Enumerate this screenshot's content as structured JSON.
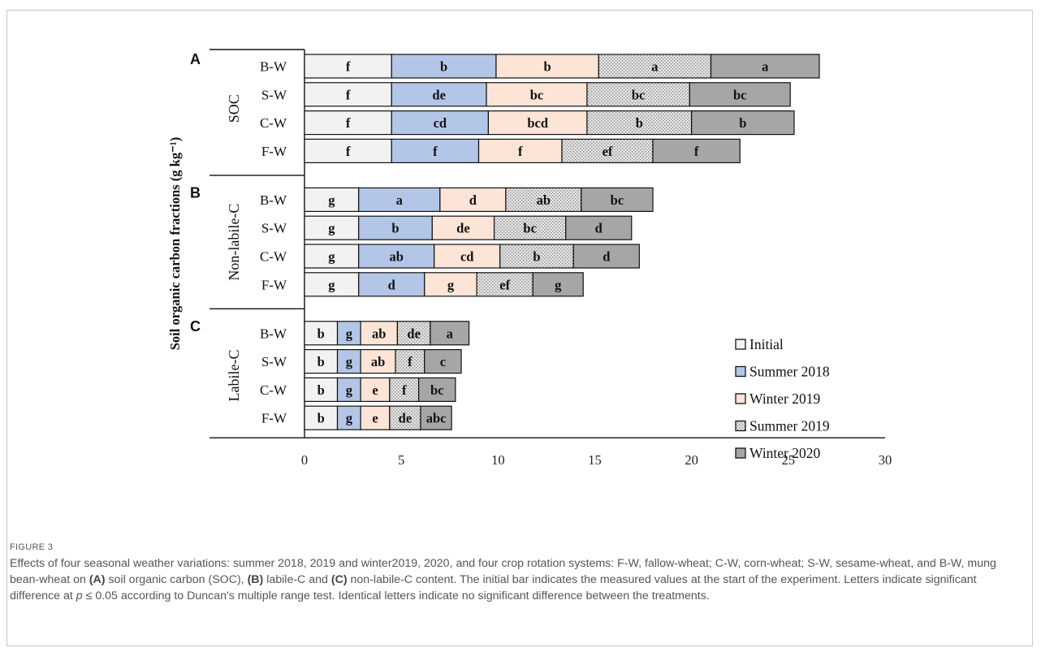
{
  "figure_label": "FIGURE 3",
  "caption": {
    "p1": "Effects of four seasonal weather variations: summer 2018, 2019 and winter2019, 2020, and four crop rotation systems: F-W, fallow-wheat; C-W, corn-wheat; S-W, sesame-wheat, and B-W, mung bean-wheat on ",
    "a": "(A)",
    "p2": " soil organic carbon (SOC), ",
    "b": "(B)",
    "p3": " labile-C and ",
    "c": "(C)",
    "p4": " non-labile-C content. The initial bar indicates the measured values at the start of the experiment. Letters indicate significant difference at ",
    "pvar": "p",
    "p5": " ≤ 0.05 according to Duncan's multiple range test. Identical letters indicate no significant difference between the treatments."
  },
  "chart_data": {
    "type": "bar",
    "orientation": "horizontal",
    "stacked": true,
    "ylabel": "Soil organic carbon fractions (g kg⁻¹)",
    "xlim": [
      0,
      30
    ],
    "xticks": [
      "0",
      "5",
      "10",
      "15",
      "20",
      "25",
      "30"
    ],
    "legend_position": "right",
    "series": [
      {
        "name": "Initial",
        "color": "#f2f2f2",
        "pattern": "none"
      },
      {
        "name": "Summer 2018",
        "color": "#b4c6e7",
        "pattern": "none"
      },
      {
        "name": "Winter 2019",
        "color": "#fce4d6",
        "pattern": "none"
      },
      {
        "name": "Summer 2019",
        "color": "#d9d9d9",
        "pattern": "dots"
      },
      {
        "name": "Winter 2020",
        "color": "#a6a6a6",
        "pattern": "none"
      }
    ],
    "panels": [
      {
        "panel_label": "A",
        "group_label": "SOC",
        "rows": [
          {
            "category": "B-W",
            "values": [
              4.5,
              5.4,
              5.3,
              5.8,
              5.6
            ],
            "letters": [
              "f",
              "b",
              "b",
              "a",
              "a"
            ]
          },
          {
            "category": "S-W",
            "values": [
              4.5,
              4.9,
              5.2,
              5.3,
              5.2
            ],
            "letters": [
              "f",
              "de",
              "bc",
              "bc",
              "bc"
            ]
          },
          {
            "category": "C-W",
            "values": [
              4.5,
              5.0,
              5.1,
              5.4,
              5.3
            ],
            "letters": [
              "f",
              "cd",
              "bcd",
              "b",
              "b"
            ]
          },
          {
            "category": "F-W",
            "values": [
              4.5,
              4.5,
              4.3,
              4.7,
              4.5
            ],
            "letters": [
              "f",
              "f",
              "f",
              "ef",
              "f"
            ]
          }
        ]
      },
      {
        "panel_label": "B",
        "group_label": "Non-labile-C",
        "rows": [
          {
            "category": "B-W",
            "values": [
              2.8,
              4.2,
              3.4,
              3.9,
              3.7
            ],
            "letters": [
              "g",
              "a",
              "d",
              "ab",
              "bc"
            ]
          },
          {
            "category": "S-W",
            "values": [
              2.8,
              3.8,
              3.2,
              3.7,
              3.4
            ],
            "letters": [
              "g",
              "b",
              "de",
              "bc",
              "d"
            ]
          },
          {
            "category": "C-W",
            "values": [
              2.8,
              3.9,
              3.4,
              3.8,
              3.4
            ],
            "letters": [
              "g",
              "ab",
              "cd",
              "b",
              "d"
            ]
          },
          {
            "category": "F-W",
            "values": [
              2.8,
              3.4,
              2.7,
              2.9,
              2.6
            ],
            "letters": [
              "g",
              "d",
              "g",
              "ef",
              "g"
            ]
          }
        ]
      },
      {
        "panel_label": "C",
        "group_label": "Labile-C",
        "rows": [
          {
            "category": "B-W",
            "values": [
              1.7,
              1.2,
              1.9,
              1.7,
              2.0
            ],
            "letters": [
              "b",
              "g",
              "ab",
              "de",
              "a"
            ]
          },
          {
            "category": "S-W",
            "values": [
              1.7,
              1.2,
              1.8,
              1.5,
              1.9
            ],
            "letters": [
              "b",
              "g",
              "ab",
              "f",
              "c"
            ]
          },
          {
            "category": "C-W",
            "values": [
              1.7,
              1.2,
              1.5,
              1.5,
              1.9
            ],
            "letters": [
              "b",
              "g",
              "e",
              "f",
              "bc"
            ]
          },
          {
            "category": "F-W",
            "values": [
              1.7,
              1.2,
              1.5,
              1.6,
              1.6
            ],
            "letters": [
              "b",
              "g",
              "e",
              "de",
              "abc"
            ]
          }
        ]
      }
    ]
  }
}
